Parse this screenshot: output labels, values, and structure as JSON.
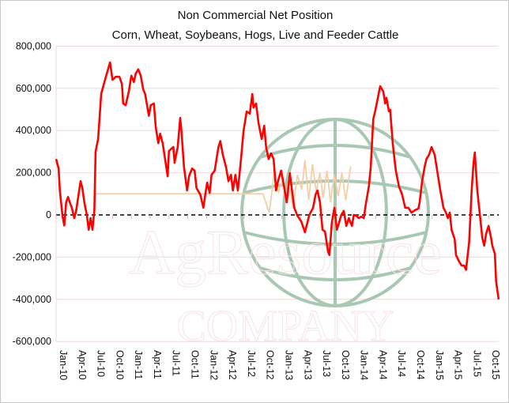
{
  "chart_data": {
    "type": "line",
    "title": "Non Commercial Net Position",
    "subtitle": "Corn, Wheat, Soybeans, Hogs, Live and Feeder Cattle",
    "xlabel": "",
    "ylabel": "",
    "ylim": [
      -600000,
      800000
    ],
    "yticks": [
      800000,
      600000,
      400000,
      200000,
      0,
      -200000,
      -400000,
      -600000
    ],
    "ytick_labels": [
      "800,000",
      "600,000",
      "400,000",
      "200,000",
      "0",
      "-200,000",
      "-400,000",
      "-600,000"
    ],
    "xtick_labels": [
      "Jan-10",
      "Apr-10",
      "Jul-10",
      "Oct-10",
      "Jan-11",
      "Apr-11",
      "Jul-11",
      "Oct-11",
      "Jan-12",
      "Apr-12",
      "Jul-12",
      "Oct-12",
      "Jan-13",
      "Apr-13",
      "Jul-13",
      "Oct-13",
      "Jan-14",
      "Apr-14",
      "Jul-14",
      "Oct-14",
      "Jan-15",
      "Apr-15",
      "Jul-15",
      "Oct-15"
    ],
    "x_units": "months since Jan-10",
    "grid": true,
    "zero_line": "dashed",
    "colors": {
      "series": "#ff0000",
      "grid": "#f2d7dc",
      "watermark": "#f3cfa8",
      "globe": "#9bbfa6"
    },
    "series": [
      {
        "name": "Non Commercial Net Position",
        "points": [
          [
            0,
            265
          ],
          [
            0.4,
            220
          ],
          [
            0.6,
            115
          ],
          [
            1.0,
            0
          ],
          [
            1.3,
            -50
          ],
          [
            1.6,
            60
          ],
          [
            1.9,
            85
          ],
          [
            2.3,
            50
          ],
          [
            2.5,
            35
          ],
          [
            2.9,
            -15
          ],
          [
            3.2,
            20
          ],
          [
            3.5,
            80
          ],
          [
            3.9,
            160
          ],
          [
            4.2,
            125
          ],
          [
            4.5,
            60
          ],
          [
            4.9,
            0
          ],
          [
            5.2,
            -70
          ],
          [
            5.5,
            -15
          ],
          [
            5.8,
            -70
          ],
          [
            6.1,
            20
          ],
          [
            6.3,
            300
          ],
          [
            6.7,
            360
          ],
          [
            7.2,
            575
          ],
          [
            7.8,
            640
          ],
          [
            8.6,
            723
          ],
          [
            9.0,
            640
          ],
          [
            9.5,
            655
          ],
          [
            10.1,
            655
          ],
          [
            10.5,
            620
          ],
          [
            10.7,
            528
          ],
          [
            11.1,
            520
          ],
          [
            11.6,
            585
          ],
          [
            12.0,
            660
          ],
          [
            12.4,
            630
          ],
          [
            12.7,
            670
          ],
          [
            13.1,
            690
          ],
          [
            13.5,
            660
          ],
          [
            13.9,
            595
          ],
          [
            14.2,
            573
          ],
          [
            14.8,
            470
          ],
          [
            15.1,
            520
          ],
          [
            15.6,
            528
          ],
          [
            15.9,
            415
          ],
          [
            16.3,
            340
          ],
          [
            16.6,
            385
          ],
          [
            17.0,
            340
          ],
          [
            17.8,
            183
          ],
          [
            18.0,
            303
          ],
          [
            18.7,
            322
          ],
          [
            18.9,
            247
          ],
          [
            19.4,
            322
          ],
          [
            19.8,
            460
          ],
          [
            20.0,
            397
          ],
          [
            20.4,
            228
          ],
          [
            20.9,
            116
          ],
          [
            21.2,
            183
          ],
          [
            21.7,
            220
          ],
          [
            22.1,
            210
          ],
          [
            22.4,
            127
          ],
          [
            23.0,
            97
          ],
          [
            23.5,
            34
          ],
          [
            23.8,
            97
          ],
          [
            24.1,
            153
          ],
          [
            24.5,
            105
          ],
          [
            24.8,
            190
          ],
          [
            25.3,
            210
          ],
          [
            25.9,
            322
          ],
          [
            26.2,
            350
          ],
          [
            26.6,
            285
          ],
          [
            27.1,
            228
          ],
          [
            27.5,
            160
          ],
          [
            27.9,
            190
          ],
          [
            28.2,
            116
          ],
          [
            28.6,
            190
          ],
          [
            29.0,
            116
          ],
          [
            29.5,
            265
          ],
          [
            29.9,
            397
          ],
          [
            30.4,
            490
          ],
          [
            30.9,
            480
          ],
          [
            31.3,
            573
          ],
          [
            31.5,
            509
          ],
          [
            31.9,
            528
          ],
          [
            32.3,
            434
          ],
          [
            32.8,
            360
          ],
          [
            33.2,
            423
          ],
          [
            33.5,
            322
          ],
          [
            33.9,
            265
          ],
          [
            34.3,
            292
          ],
          [
            34.7,
            265
          ],
          [
            35.1,
            116
          ],
          [
            35.4,
            160
          ],
          [
            35.9,
            210
          ],
          [
            36.3,
            146
          ],
          [
            36.8,
            60
          ],
          [
            37.3,
            198
          ],
          [
            37.6,
            124
          ],
          [
            38.0,
            34
          ],
          [
            38.5,
            -4
          ],
          [
            39.1,
            -30
          ],
          [
            39.7,
            -82
          ],
          [
            40.4,
            0
          ],
          [
            41.0,
            34
          ],
          [
            41.4,
            97
          ],
          [
            41.7,
            116
          ],
          [
            42.1,
            60
          ],
          [
            42.5,
            -70
          ],
          [
            42.9,
            -79
          ],
          [
            43.4,
            -176
          ],
          [
            43.6,
            -190
          ],
          [
            44.0,
            -34
          ],
          [
            44.4,
            34
          ],
          [
            44.8,
            -70
          ],
          [
            45.1,
            -41
          ],
          [
            45.5,
            0
          ],
          [
            45.9,
            19
          ],
          [
            46.3,
            -52
          ],
          [
            46.7,
            -15
          ],
          [
            47.2,
            -52
          ],
          [
            47.5,
            0
          ],
          [
            47.9,
            -4
          ],
          [
            48.3,
            -15
          ],
          [
            48.7,
            -8
          ],
          [
            49.1,
            -15
          ],
          [
            49.4,
            49
          ],
          [
            49.9,
            135
          ],
          [
            50.2,
            228
          ],
          [
            50.6,
            454
          ],
          [
            50.9,
            491
          ],
          [
            51.4,
            565
          ],
          [
            51.7,
            610
          ],
          [
            52.2,
            585
          ],
          [
            52.5,
            528
          ],
          [
            52.7,
            555
          ],
          [
            53.1,
            491
          ],
          [
            53.3,
            498
          ],
          [
            53.7,
            341
          ],
          [
            54.2,
            210
          ],
          [
            54.7,
            135
          ],
          [
            55.2,
            97
          ],
          [
            55.7,
            34
          ],
          [
            56.2,
            34
          ],
          [
            56.7,
            11
          ],
          [
            57.3,
            23
          ],
          [
            57.8,
            30
          ],
          [
            58.0,
            60
          ],
          [
            58.4,
            161
          ],
          [
            58.8,
            228
          ],
          [
            59.1,
            266
          ],
          [
            59.5,
            285
          ],
          [
            59.9,
            322
          ],
          [
            60.4,
            285
          ],
          [
            60.8,
            210
          ],
          [
            61.3,
            116
          ],
          [
            61.8,
            34
          ],
          [
            62.2,
            11
          ],
          [
            62.5,
            -15
          ],
          [
            62.8,
            11
          ],
          [
            63.1,
            -71
          ],
          [
            63.6,
            -116
          ],
          [
            63.8,
            -190
          ],
          [
            64.3,
            -221
          ],
          [
            64.7,
            -240
          ],
          [
            65.1,
            -240
          ],
          [
            65.4,
            -260
          ],
          [
            65.9,
            -128
          ],
          [
            66.3,
            116
          ],
          [
            66.6,
            247
          ],
          [
            66.8,
            296
          ],
          [
            67.2,
            116
          ],
          [
            67.6,
            4
          ],
          [
            68.0,
            -109
          ],
          [
            68.3,
            -146
          ],
          [
            68.6,
            -90
          ],
          [
            69.0,
            -52
          ],
          [
            69.4,
            -109
          ],
          [
            69.6,
            -146
          ],
          [
            70.0,
            -184
          ],
          [
            70.2,
            -315
          ],
          [
            70.6,
            -400
          ]
        ],
        "value_units": "thousands"
      },
      {
        "name": "watermark-line",
        "points": [
          [
            6.3,
            100
          ],
          [
            33.0,
            100
          ],
          [
            34.0,
            10
          ],
          [
            34.8,
            200
          ],
          [
            35.5,
            110
          ],
          [
            36.2,
            170
          ],
          [
            36.8,
            60
          ],
          [
            37.3,
            130
          ],
          [
            37.8,
            30
          ],
          [
            38.5,
            190
          ],
          [
            39.2,
            120
          ],
          [
            39.7,
            260
          ],
          [
            40.3,
            70
          ],
          [
            40.9,
            240
          ],
          [
            41.5,
            110
          ],
          [
            42.1,
            200
          ],
          [
            42.6,
            80
          ],
          [
            43.2,
            210
          ],
          [
            43.8,
            60
          ],
          [
            44.4,
            190
          ],
          [
            45.0,
            90
          ],
          [
            45.6,
            200
          ],
          [
            46.2,
            70
          ],
          [
            47.0,
            230
          ]
        ],
        "value_units": "thousands"
      }
    ],
    "watermark": {
      "line1": "AgResource",
      "line2": "COMPANY"
    }
  }
}
